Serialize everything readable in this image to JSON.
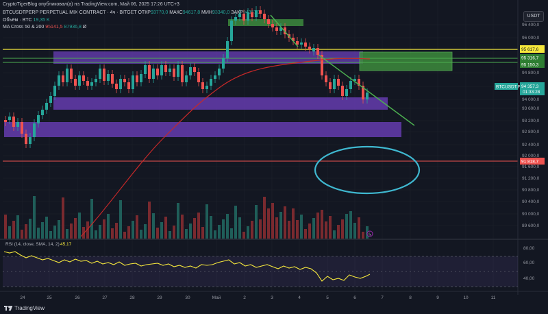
{
  "caption": "CryptoTigerBlog опубликовал(а) на TradingView.com, Май 06, 2025 17:26 UTC+3",
  "legend": {
    "symbol": "BTCUSDTPERP PERPETUAL MIX CONTRACT · 4ч · BITGET",
    "open_label": "ОТКР",
    "open_value": "93770,0",
    "high_label": "МАКС",
    "high_value": "94617,8",
    "low_label": "МИН",
    "low_value": "93340,0",
    "close_label": "ЗАКР",
    "close_value": "94357,3",
    "volume_label": "Объём · BTC",
    "volume_value": "19,35 K",
    "ma_label": "MA Cross 50 & 200",
    "ma_value1": "95141,5",
    "ma_value2": "87936,8",
    "ma_extra": "Ø"
  },
  "currency": "USDT",
  "price_axis": {
    "ticks": [
      "96 400,0",
      "96 000,0",
      "94 800,0",
      "94 400,0",
      "94 000,0",
      "93 600,0",
      "93 200,0",
      "92 800,0",
      "92 400,0",
      "92 000,0",
      "91 600,0",
      "91 200,0",
      "90 800,0",
      "90 400,0",
      "90 000,0",
      "89 600,0"
    ]
  },
  "price_tags": {
    "yellow": "95 617,6",
    "green_upper": "95 316,7",
    "green_lower": "95 150,3",
    "symbol_tag": "BTCUSDT.P",
    "symbol_price": "94 357,3",
    "countdown": "01:33:28",
    "red": "91 818,7"
  },
  "rsi": {
    "label": "RSI (14, close, SMA, 14, 2)",
    "value": "45,17",
    "ticks": [
      "80,00",
      "60,00",
      "40,00"
    ]
  },
  "time_axis": [
    "24",
    "25",
    "26",
    "27",
    "28",
    "29",
    "30",
    "Май",
    "2",
    "3",
    "4",
    "5",
    "6",
    "7",
    "8",
    "9",
    "10",
    "11"
  ],
  "branding": "TradingView",
  "colors": {
    "background": "#131722",
    "up": "#26a69a",
    "down": "#ef5350",
    "zone": "#6a3fb8",
    "yellow_line": "#f5e73c",
    "green_zone": "#3d8b3d",
    "ma_line": "#c62828",
    "cyan_circle": "#3fb8d0"
  }
}
